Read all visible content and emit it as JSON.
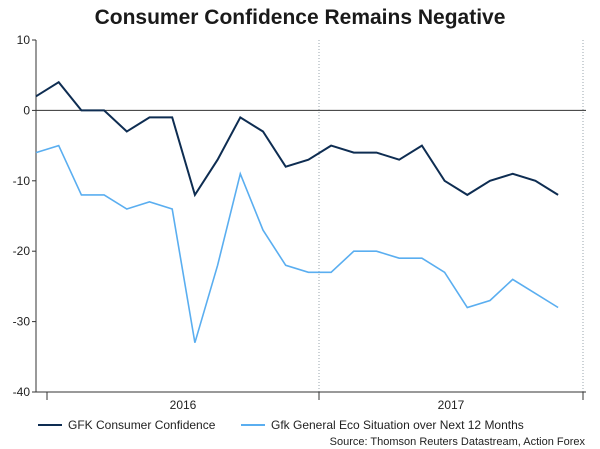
{
  "chart_data": {
    "type": "line",
    "title": "Consumer Confidence Remains Negative",
    "xlabel": "",
    "ylabel": "",
    "ylim": [
      -40,
      10
    ],
    "yticks": [
      10,
      0,
      -10,
      -20,
      -30,
      -40
    ],
    "year_labels": [
      "2016",
      "2017"
    ],
    "zero_line": true,
    "series": [
      {
        "name": "GFK Consumer Confidence",
        "color": "#0e2d52",
        "values": [
          2,
          4,
          0,
          0,
          -3,
          -1,
          -1,
          -12,
          -7,
          -1,
          -3,
          -8,
          -7,
          -5,
          -6,
          -6,
          -7,
          -5,
          -10,
          -12,
          -10,
          -9,
          -10,
          -12
        ]
      },
      {
        "name": "Gfk General Eco Situation over Next 12 Months",
        "color": "#5aaef0",
        "values": [
          -6,
          -5,
          -12,
          -12,
          -14,
          -13,
          -14,
          -33,
          -22,
          -9,
          -17,
          -22,
          -23,
          -23,
          -20,
          -20,
          -21,
          -21,
          -23,
          -28,
          -27,
          -24,
          -26,
          -28
        ]
      }
    ],
    "source": "Source: Thomson Reuters Datastream, Action Forex"
  }
}
